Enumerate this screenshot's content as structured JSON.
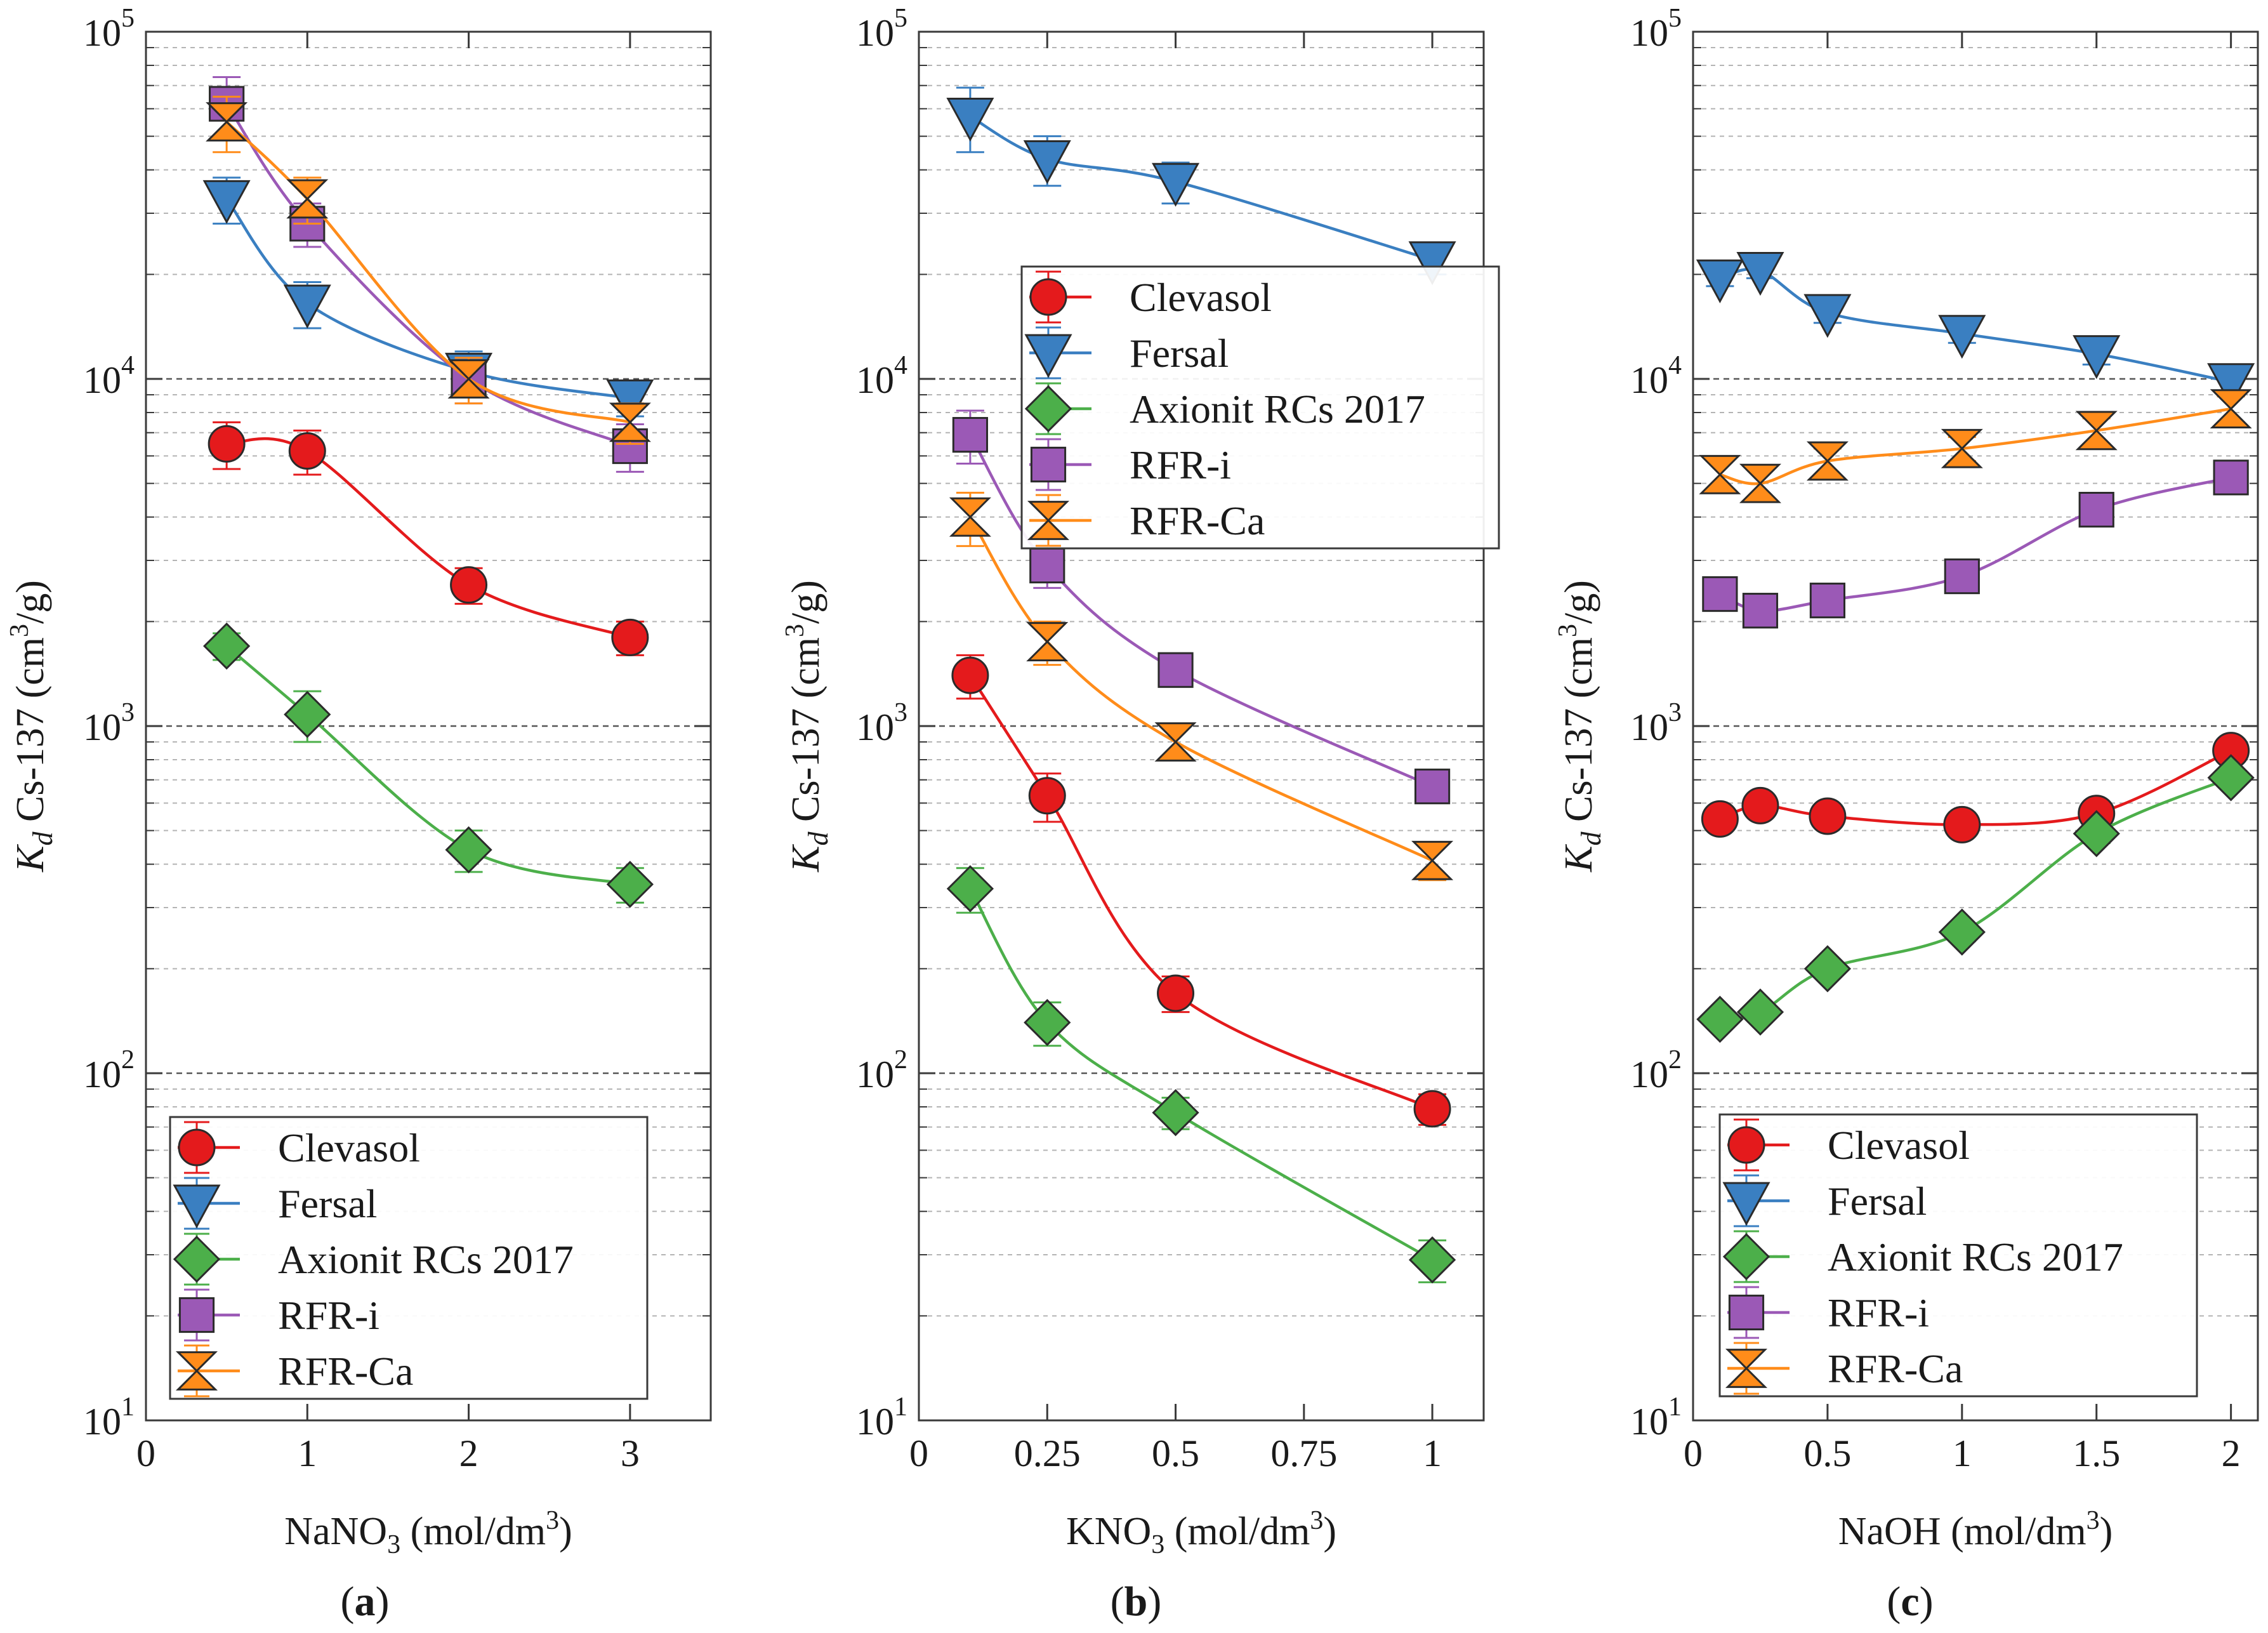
{
  "chart_data": [
    {
      "type": "line",
      "panel_label": "(a)",
      "ylabel": "K_d Cs-137 (cm^3/g)",
      "xlabel": "NaNO3 (mol/dm3)",
      "yscale": "log",
      "ylim": [
        10,
        100000
      ],
      "xlim": [
        0,
        3.5
      ],
      "xticks": [
        0,
        1,
        2,
        3
      ],
      "xtick_labels": [
        "0",
        "1",
        "2",
        "3"
      ],
      "legend_position": "lower-center",
      "series": [
        {
          "name": "Clevasol",
          "x": [
            0.5,
            1,
            2,
            3
          ],
          "values": [
            6500,
            6200,
            2550,
            1800
          ],
          "err": [
            1000,
            900,
            300,
            200
          ]
        },
        {
          "name": "Fersal",
          "x": [
            0.5,
            1,
            2,
            3
          ],
          "values": [
            33000,
            16500,
            10500,
            8800
          ],
          "err": [
            5000,
            2500,
            1500,
            1000
          ]
        },
        {
          "name": "Axionit RCs 2017",
          "x": [
            0.5,
            1,
            2,
            3
          ],
          "values": [
            1700,
            1080,
            440,
            350
          ],
          "err": [
            150,
            180,
            60,
            40
          ]
        },
        {
          "name": "RFR-i",
          "x": [
            0.5,
            1,
            2,
            3
          ],
          "values": [
            62000,
            28000,
            10000,
            6400
          ],
          "err": [
            12000,
            4000,
            1500,
            1000
          ]
        },
        {
          "name": "RFR-Ca",
          "x": [
            0.5,
            1,
            2,
            3
          ],
          "values": [
            55000,
            33000,
            10000,
            7500
          ],
          "err": [
            10000,
            5000,
            1500,
            1000
          ]
        }
      ]
    },
    {
      "type": "line",
      "panel_label": "(b)",
      "ylabel": "K_d Cs-137 (cm^3/g)",
      "xlabel": "KNO3 (mol/dm3)",
      "yscale": "log",
      "ylim": [
        10,
        100000
      ],
      "xlim": [
        0,
        1.1
      ],
      "xticks": [
        0,
        0.25,
        0.5,
        0.75,
        1
      ],
      "xtick_labels": [
        "0",
        "0.25",
        "0.5",
        "0.75",
        "1"
      ],
      "legend_position": "upper-right",
      "series": [
        {
          "name": "Clevasol",
          "x": [
            0.1,
            0.25,
            0.5,
            1
          ],
          "values": [
            1400,
            630,
            170,
            79
          ],
          "err": [
            200,
            100,
            20,
            8
          ]
        },
        {
          "name": "Fersal",
          "x": [
            0.1,
            0.25,
            0.5,
            1
          ],
          "values": [
            57000,
            43000,
            37000,
            22000
          ],
          "err": [
            12000,
            7000,
            5000,
            2000
          ]
        },
        {
          "name": "Axionit RCs 2017",
          "x": [
            0.1,
            0.25,
            0.5,
            1
          ],
          "values": [
            340,
            140,
            77,
            29
          ],
          "err": [
            50,
            20,
            8,
            4
          ]
        },
        {
          "name": "RFR-i",
          "x": [
            0.1,
            0.25,
            0.5,
            1
          ],
          "values": [
            6900,
            2900,
            1450,
            670
          ],
          "err": [
            1200,
            400,
            150,
            60
          ]
        },
        {
          "name": "RFR-Ca",
          "x": [
            0.1,
            0.25,
            0.5,
            1
          ],
          "values": [
            4000,
            1750,
            900,
            410
          ],
          "err": [
            700,
            250,
            100,
            50
          ]
        }
      ]
    },
    {
      "type": "line",
      "panel_label": "(c)",
      "ylabel": "K_d Cs-137 (cm^3/g)",
      "xlabel": "NaOH (mol/dm3)",
      "yscale": "log",
      "ylim": [
        10,
        100000
      ],
      "xlim": [
        0,
        2.1
      ],
      "xticks": [
        0,
        0.5,
        1,
        1.5,
        2
      ],
      "xtick_labels": [
        "0",
        "0.5",
        "1",
        "1.5",
        "2"
      ],
      "legend_position": "lower-center",
      "series": [
        {
          "name": "Clevasol",
          "x": [
            0.1,
            0.25,
            0.5,
            1,
            1.5,
            2
          ],
          "values": [
            540,
            590,
            550,
            520,
            560,
            850
          ],
          "err": [
            30,
            30,
            30,
            30,
            30,
            50
          ]
        },
        {
          "name": "Fersal",
          "x": [
            0.1,
            0.25,
            0.5,
            1,
            1.5,
            2
          ],
          "values": [
            19500,
            20500,
            15500,
            13500,
            11800,
            9800
          ],
          "err": [
            1000,
            1000,
            1000,
            800,
            800,
            600
          ]
        },
        {
          "name": "Axionit RCs 2017",
          "x": [
            0.1,
            0.25,
            0.5,
            1,
            1.5,
            2
          ],
          "values": [
            143,
            150,
            200,
            255,
            490,
            710
          ],
          "err": [
            8,
            8,
            10,
            15,
            30,
            40
          ]
        },
        {
          "name": "RFR-i",
          "x": [
            0.1,
            0.25,
            0.5,
            1,
            1.5,
            2
          ],
          "values": [
            2400,
            2150,
            2300,
            2700,
            4200,
            5200
          ],
          "err": [
            150,
            150,
            150,
            150,
            250,
            300
          ]
        },
        {
          "name": "RFR-Ca",
          "x": [
            0.1,
            0.25,
            0.5,
            1,
            1.5,
            2
          ],
          "values": [
            5300,
            5000,
            5800,
            6300,
            7100,
            8200
          ],
          "err": [
            500,
            500,
            500,
            500,
            600,
            700
          ]
        }
      ]
    }
  ],
  "styles": {
    "Clevasol": {
      "color": "#e41a1c",
      "marker": "circle"
    },
    "Fersal": {
      "color": "#3a7fc1",
      "marker": "triangle-down"
    },
    "Axionit RCs 2017": {
      "color": "#4caf4a",
      "marker": "diamond"
    },
    "RFR-i": {
      "color": "#9b59b6",
      "marker": "square"
    },
    "RFR-Ca": {
      "color": "#ff8c1a",
      "marker": "hourglass"
    }
  },
  "ytick_labels": [
    {
      "base": "10",
      "exp": "1"
    },
    {
      "base": "10",
      "exp": "2"
    },
    {
      "base": "10",
      "exp": "3"
    },
    {
      "base": "10",
      "exp": "4"
    },
    {
      "base": "10",
      "exp": "5"
    }
  ],
  "axis_text": {
    "ylabel_k": "K",
    "ylabel_sub": "d",
    "ylabel_mid": " Cs-137 (cm",
    "ylabel_sup": "3",
    "ylabel_end": "/g)",
    "xlabel_a_pre": "NaNO",
    "xlabel_a_sub": "3",
    "xlabel_b_pre": "KNO",
    "xlabel_b_sub": "3",
    "xlabel_c_pre": "NaOH",
    "xlabel_post": " (mol/dm",
    "xlabel_sup": "3",
    "xlabel_end": ")",
    "panel_open": "(",
    "panel_close": ")",
    "panel_a": "a",
    "panel_b": "b",
    "panel_c": "c"
  }
}
